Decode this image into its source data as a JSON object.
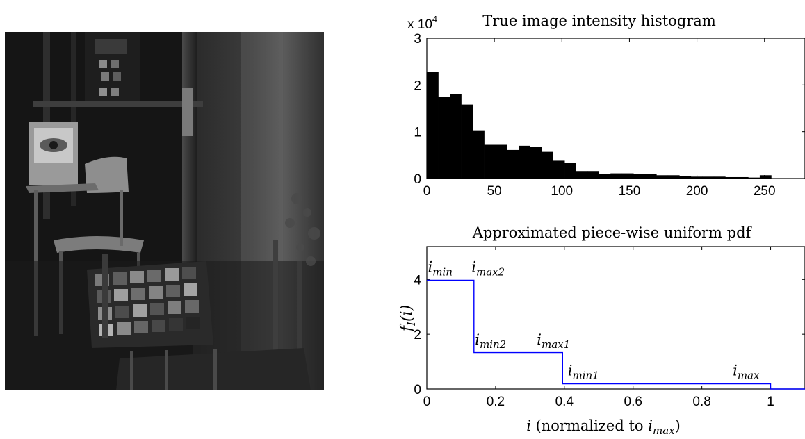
{
  "chart_data": [
    {
      "type": "bar",
      "title": "True image intensity histogram",
      "y_multiplier": "x 10",
      "y_multiplier_exponent": "4",
      "xlim": [
        0,
        280
      ],
      "ylim": [
        0,
        3
      ],
      "xticks": [
        0,
        50,
        100,
        150,
        200,
        250
      ],
      "yticks": [
        0,
        1,
        2,
        3
      ],
      "bin_width": 8.5,
      "bins": [
        {
          "x": 0,
          "value": 2.28
        },
        {
          "x": 8.5,
          "value": 1.74
        },
        {
          "x": 17,
          "value": 1.81
        },
        {
          "x": 25.5,
          "value": 1.58
        },
        {
          "x": 34,
          "value": 1.03
        },
        {
          "x": 42.5,
          "value": 0.72
        },
        {
          "x": 51,
          "value": 0.72
        },
        {
          "x": 59.5,
          "value": 0.61
        },
        {
          "x": 68,
          "value": 0.7
        },
        {
          "x": 76.5,
          "value": 0.67
        },
        {
          "x": 85,
          "value": 0.57
        },
        {
          "x": 93.5,
          "value": 0.38
        },
        {
          "x": 102,
          "value": 0.33
        },
        {
          "x": 110.5,
          "value": 0.16
        },
        {
          "x": 119,
          "value": 0.16
        },
        {
          "x": 127.5,
          "value": 0.1
        },
        {
          "x": 136,
          "value": 0.11
        },
        {
          "x": 144.5,
          "value": 0.11
        },
        {
          "x": 153,
          "value": 0.09
        },
        {
          "x": 161.5,
          "value": 0.09
        },
        {
          "x": 170,
          "value": 0.07
        },
        {
          "x": 178.5,
          "value": 0.07
        },
        {
          "x": 187,
          "value": 0.05
        },
        {
          "x": 195.5,
          "value": 0.04
        },
        {
          "x": 204,
          "value": 0.04
        },
        {
          "x": 212.5,
          "value": 0.04
        },
        {
          "x": 221,
          "value": 0.03
        },
        {
          "x": 229.5,
          "value": 0.03
        },
        {
          "x": 238,
          "value": 0.02
        },
        {
          "x": 246.5,
          "value": 0.07
        }
      ],
      "bar_color": "#000000"
    },
    {
      "type": "line",
      "title": "Approximated piece-wise uniform pdf",
      "xlabel_var": "i",
      "xlabel_text": "(normalized to",
      "xlabel_ref": "i",
      "xlabel_ref_sub": "max",
      "xlabel_close": ")",
      "ylabel": "f",
      "ylabel_sub": "I",
      "ylabel_arg": "(i)",
      "xlim": [
        0,
        1.1
      ],
      "ylim": [
        0,
        5.2
      ],
      "xticks": [
        0,
        0.2,
        0.4,
        0.6,
        0.8,
        1
      ],
      "yticks": [
        0,
        2,
        4
      ],
      "line_color": "#0000ff",
      "points": [
        [
          0,
          3.97
        ],
        [
          0.137,
          3.97
        ],
        [
          0.137,
          1.33
        ],
        [
          0.395,
          1.33
        ],
        [
          0.395,
          0.19
        ],
        [
          1.0,
          0.19
        ],
        [
          1.0,
          0
        ],
        [
          1.1,
          0
        ]
      ],
      "annotations": [
        {
          "base": "i",
          "sub": "min",
          "x": 0.003,
          "y": 4.28
        },
        {
          "base": "i",
          "sub": "max2",
          "x": 0.13,
          "y": 4.28
        },
        {
          "base": "i",
          "sub": "min2",
          "x": 0.14,
          "y": 1.62
        },
        {
          "base": "i",
          "sub": "max1",
          "x": 0.32,
          "y": 1.62
        },
        {
          "base": "i",
          "sub": "min1",
          "x": 0.41,
          "y": 0.5
        },
        {
          "base": "i",
          "sub": "max",
          "x": 0.89,
          "y": 0.5
        }
      ]
    }
  ]
}
